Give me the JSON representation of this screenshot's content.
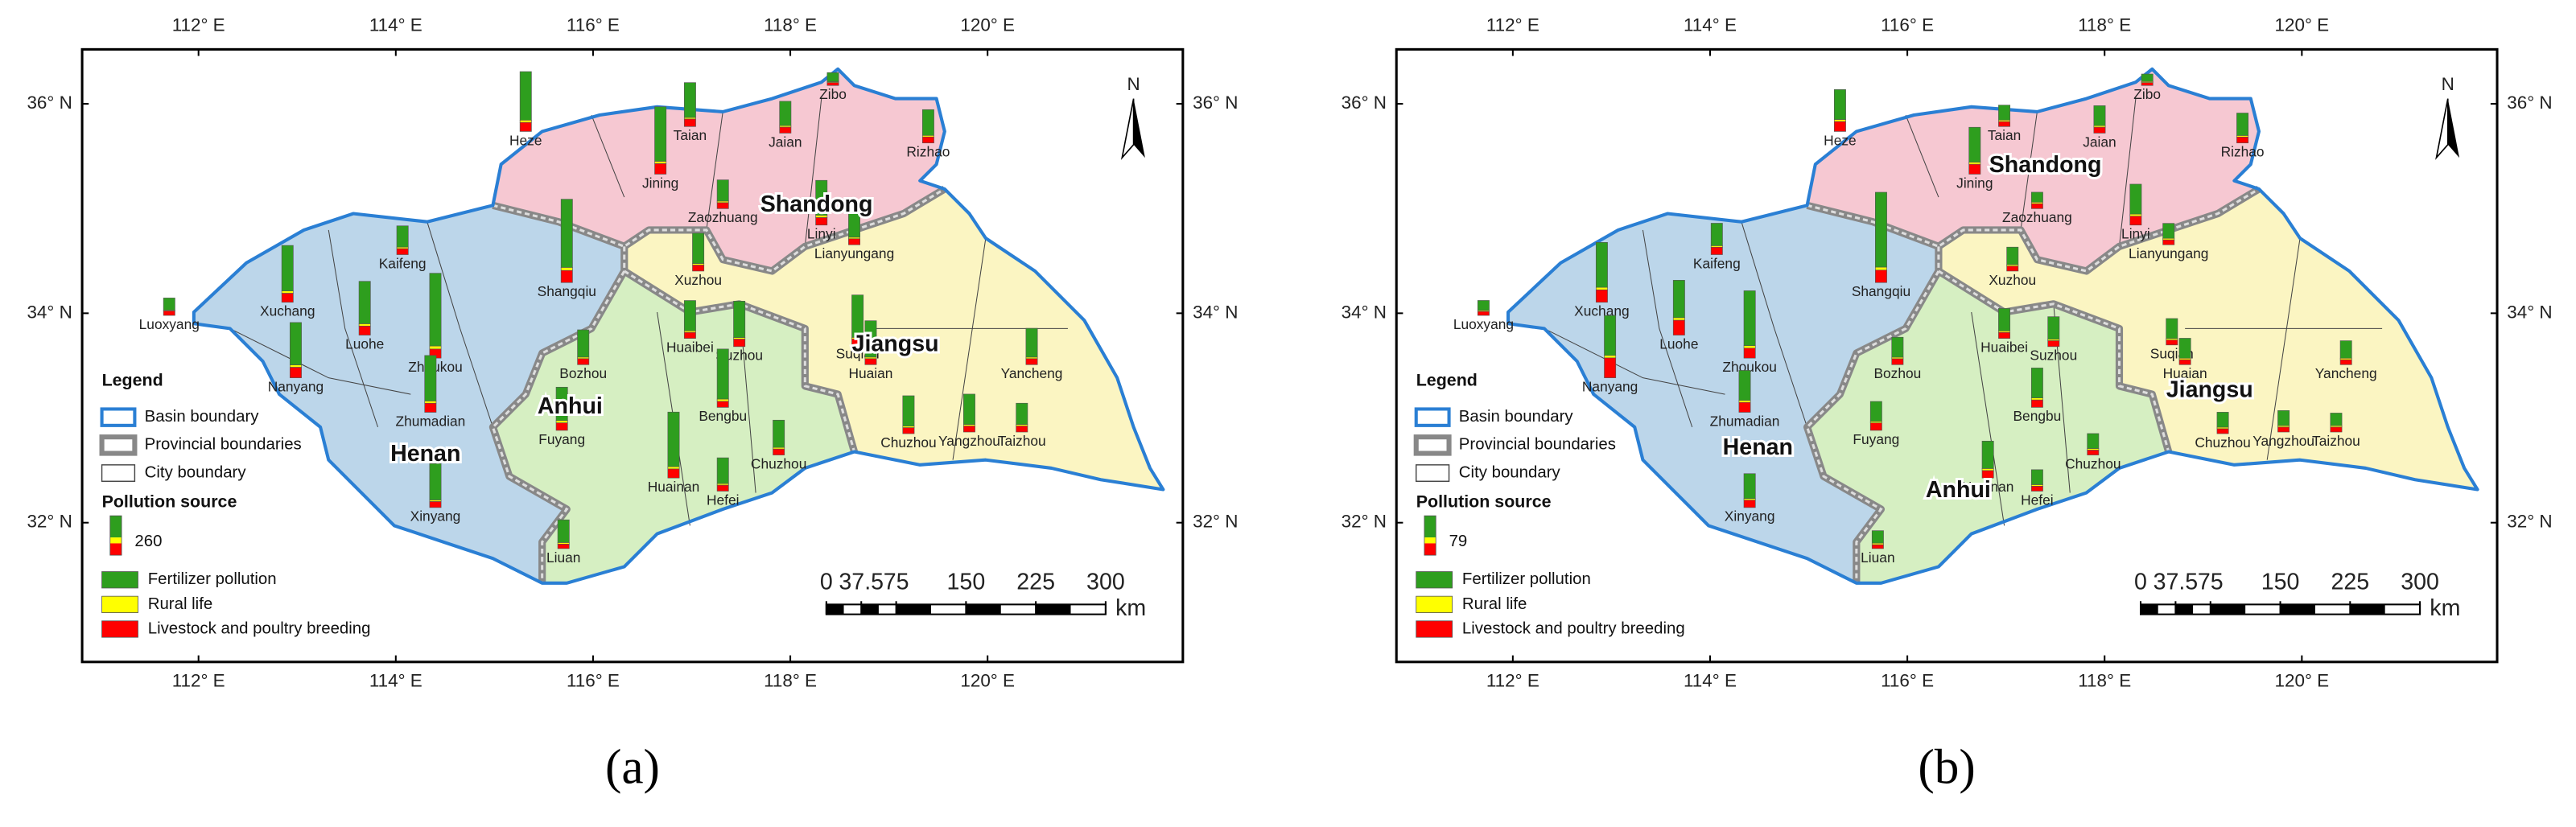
{
  "legend": {
    "title": "Legend",
    "items": [
      "Basin boundary",
      "Provincial boundaries",
      "City boundary"
    ],
    "source_title": "Pollution source",
    "sources": [
      "Fertilizer pollution",
      "Rural life",
      "Livestock and poultry breeding"
    ],
    "colors": [
      "#2e9e1e",
      "#ffff00",
      "#ff0000"
    ]
  },
  "north": "N",
  "lon_ticks": [
    {
      "value": 112,
      "label": "112° E"
    },
    {
      "value": 114,
      "label": "114° E"
    },
    {
      "value": 116,
      "label": "116° E"
    },
    {
      "value": 118,
      "label": "118° E"
    },
    {
      "value": 120,
      "label": "120° E"
    }
  ],
  "lat_ticks": [
    {
      "value": 32,
      "label": "32° N"
    },
    {
      "value": 34,
      "label": "34° N"
    },
    {
      "value": 36,
      "label": "36° N"
    }
  ],
  "xlim": [
    110.82,
    121.98
  ],
  "ylim": [
    30.67,
    36.52
  ],
  "scale_bar": {
    "ticks": [
      0,
      37.5,
      75,
      150,
      225,
      300
    ],
    "unit": "km"
  },
  "provinces": [
    "Henan",
    "Anhui",
    "Shandong",
    "Jiangsu"
  ],
  "cities": [
    "Zibo",
    "Taian",
    "Jaian",
    "Rizhao",
    "Heze",
    "Jining",
    "Zaozhuang",
    "Linyi",
    "Kaifeng",
    "Shangqiu",
    "Xuzhou",
    "Lianyungang",
    "Luoxyang",
    "Xuchang",
    "Luohe",
    "Nanyang",
    "Zhoukou",
    "Zhumadian",
    "Xinyang",
    "Bozhou",
    "Huaibei",
    "Suzhou",
    "Suqian",
    "Huaian",
    "Yancheng",
    "Fuyang",
    "Bengbu",
    "Huainan",
    "Chuzhou",
    "Hefei",
    "Chuzhou",
    "Yangzhou",
    "Taizhou",
    "Liuan"
  ],
  "panels": [
    {
      "caption": "(a)",
      "reference": 260,
      "sources": [
        [
          60,
          5,
          20
        ],
        [
          230,
          10,
          50
        ],
        [
          160,
          10,
          40
        ],
        [
          170,
          10,
          40
        ],
        [
          320,
          15,
          60
        ],
        [
          360,
          15,
          70
        ],
        [
          140,
          10,
          40
        ],
        [
          230,
          15,
          50
        ],
        [
          140,
          10,
          40
        ],
        [
          450,
          20,
          80
        ],
        [
          200,
          10,
          40
        ],
        [
          180,
          10,
          40
        ],
        [
          80,
          5,
          30
        ],
        [
          300,
          15,
          60
        ],
        [
          280,
          15,
          60
        ],
        [
          280,
          15,
          70
        ],
        [
          480,
          20,
          60
        ],
        [
          300,
          15,
          60
        ],
        [
          240,
          10,
          40
        ],
        [
          180,
          10,
          40
        ],
        [
          200,
          10,
          40
        ],
        [
          240,
          10,
          50
        ],
        [
          280,
          10,
          40
        ],
        [
          240,
          10,
          40
        ],
        [
          190,
          10,
          40
        ],
        [
          220,
          15,
          50
        ],
        [
          330,
          15,
          40
        ],
        [
          360,
          15,
          60
        ],
        [
          180,
          10,
          40
        ],
        [
          170,
          10,
          40
        ],
        [
          200,
          10,
          40
        ],
        [
          200,
          10,
          40
        ],
        [
          140,
          10,
          40
        ],
        [
          150,
          10,
          30
        ]
      ]
    },
    {
      "caption": "(b)",
      "reference": 79,
      "sources": [
        [
          15,
          2,
          6
        ],
        [
          30,
          3,
          10
        ],
        [
          40,
          3,
          12
        ],
        [
          45,
          3,
          12
        ],
        [
          60,
          4,
          20
        ],
        [
          70,
          4,
          20
        ],
        [
          20,
          3,
          10
        ],
        [
          60,
          4,
          18
        ],
        [
          45,
          3,
          15
        ],
        [
          150,
          6,
          25
        ],
        [
          35,
          3,
          10
        ],
        [
          30,
          3,
          10
        ],
        [
          20,
          2,
          8
        ],
        [
          90,
          5,
          25
        ],
        [
          75,
          5,
          30
        ],
        [
          80,
          5,
          40
        ],
        [
          110,
          5,
          20
        ],
        [
          60,
          4,
          20
        ],
        [
          50,
          3,
          15
        ],
        [
          40,
          3,
          12
        ],
        [
          45,
          3,
          12
        ],
        [
          45,
          3,
          12
        ],
        [
          40,
          3,
          10
        ],
        [
          40,
          3,
          10
        ],
        [
          35,
          3,
          10
        ],
        [
          40,
          3,
          15
        ],
        [
          60,
          4,
          15
        ],
        [
          55,
          4,
          15
        ],
        [
          30,
          3,
          10
        ],
        [
          30,
          3,
          10
        ],
        [
          30,
          3,
          10
        ],
        [
          30,
          3,
          10
        ],
        [
          25,
          3,
          10
        ],
        [
          25,
          3,
          8
        ]
      ]
    }
  ]
}
